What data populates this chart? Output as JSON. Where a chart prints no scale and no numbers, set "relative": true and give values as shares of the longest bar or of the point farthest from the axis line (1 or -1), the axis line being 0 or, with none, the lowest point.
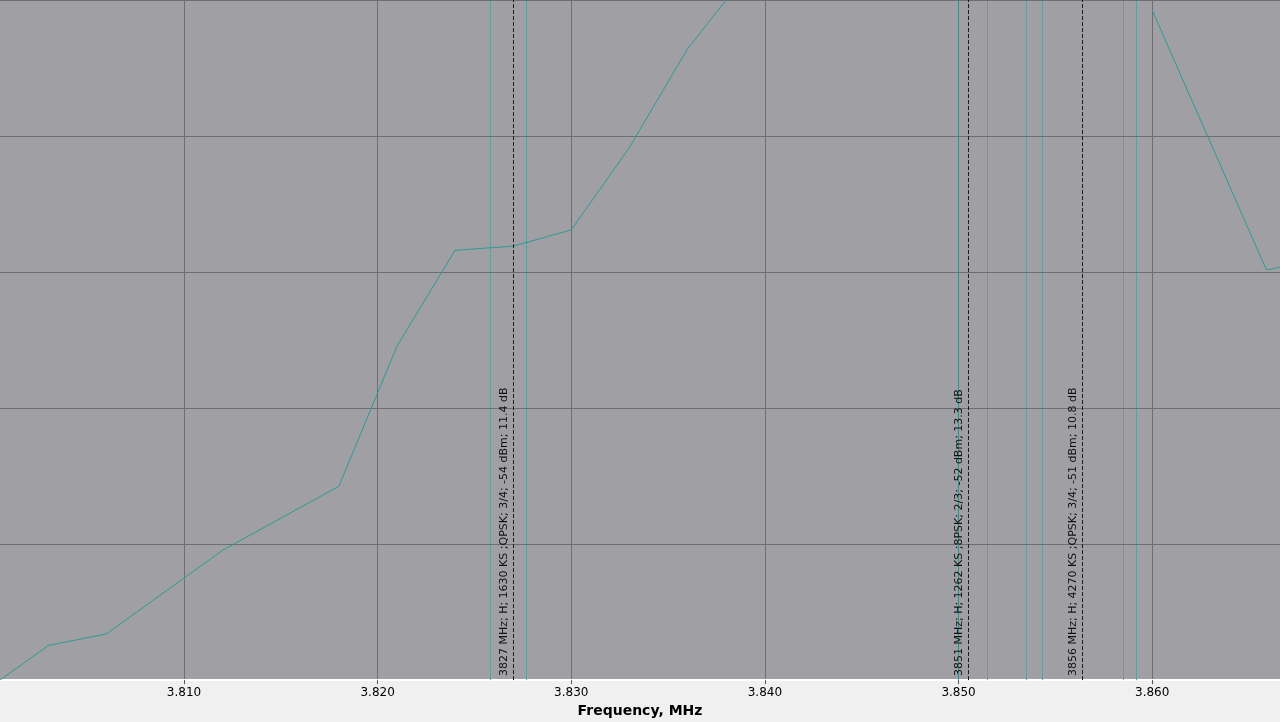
{
  "chart_data": {
    "type": "line",
    "xlabel": "Frequency, MHz",
    "relative": true,
    "grid": true,
    "marker": "none",
    "line_style": "solid",
    "x": [
      3.8005,
      3.803,
      3.806,
      3.812,
      3.815,
      3.818,
      3.821,
      3.824,
      3.827,
      3.83,
      3.833,
      3.836,
      3.838,
      3.8589,
      3.86,
      3.8659,
      3.8666
    ],
    "series": [
      {
        "color": "#2e9a94",
        "values": [
          0,
          0.051,
          0.068,
          0.191,
          0.238,
          0.285,
          0.491,
          0.632,
          0.638,
          0.662,
          0.783,
          0.928,
          1.0,
          null,
          0.985,
          0.603,
          0.607
        ]
      }
    ],
    "xlim": [
      3.8005,
      3.8666
    ],
    "xticks": [
      {
        "value": 3.81,
        "label": "3.810"
      },
      {
        "value": 3.82,
        "label": "3.820"
      },
      {
        "value": 3.83,
        "label": "3.830"
      },
      {
        "value": 3.84,
        "label": "3.840"
      },
      {
        "value": 3.85,
        "label": "3.850"
      },
      {
        "value": 3.86,
        "label": "3.860"
      }
    ],
    "ref_lines": [
      {
        "axis": "x",
        "value": 3.8258,
        "color": "#2e9a94",
        "line_style": "dotted"
      },
      {
        "axis": "x",
        "value": 3.827,
        "color": "#1a1a1a",
        "line_style": "dashed",
        "label": "3827 MHz; H; 1630 KS ;QPSK; 3/4; -54 dBm; 11.4 dB"
      },
      {
        "axis": "x",
        "value": 3.8277,
        "color": "#2e9a94",
        "line_style": "dotted"
      },
      {
        "axis": "x",
        "value": 3.85,
        "color": "#2e9a94",
        "line_style": "dotted"
      },
      {
        "axis": "x",
        "value": 3.8505,
        "color": "#1a1a1a",
        "line_style": "dashed",
        "label": "3851 MHz; H; 1262 KS ;8PSK; 2/3; -52 dBm; 13.3 dB"
      },
      {
        "axis": "x",
        "value": 3.8515,
        "color": "#2e9a94",
        "line_style": "dotted"
      },
      {
        "axis": "x",
        "value": 3.8535,
        "color": "#2e9a94",
        "line_style": "dotted"
      },
      {
        "axis": "x",
        "value": 3.8543,
        "color": "#2e9a94",
        "line_style": "dotted"
      },
      {
        "axis": "x",
        "value": 3.8564,
        "color": "#1a1a1a",
        "line_style": "dashed",
        "label": "3856 MHz; H; 4270 KS ;QPSK; 3/4; -51 dBm; 10.8 dB"
      },
      {
        "axis": "x",
        "value": 3.8585,
        "color": "#2e9a94",
        "line_style": "dotted"
      },
      {
        "axis": "x",
        "value": 3.8592,
        "color": "#2e9a94",
        "line_style": "dotted"
      }
    ]
  }
}
